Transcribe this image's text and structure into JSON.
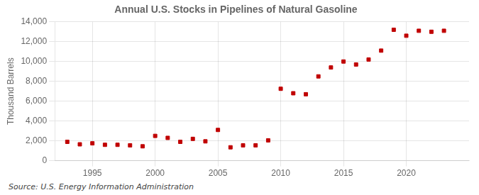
{
  "chart_data": {
    "type": "scatter",
    "title": "Annual U.S. Stocks in Pipelines of Natural Gasoline",
    "y_label": "Thousand Barrels",
    "source": "Source: U.S. Energy Information Administration",
    "color": "#c00000",
    "marker": "square",
    "x": [
      1993,
      1994,
      1995,
      1996,
      1997,
      1998,
      1999,
      2000,
      2001,
      2002,
      2003,
      2004,
      2005,
      2006,
      2007,
      2008,
      2009,
      2010,
      2011,
      2012,
      2013,
      2014,
      2015,
      2016,
      2017,
      2018,
      2019,
      2020,
      2021,
      2022,
      2023
    ],
    "values": [
      1900,
      1650,
      1750,
      1600,
      1600,
      1550,
      1450,
      2500,
      2300,
      1900,
      2200,
      1950,
      3100,
      1350,
      1550,
      1550,
      2050,
      7250,
      6800,
      6700,
      8500,
      9400,
      10000,
      9700,
      10200,
      11100,
      13200,
      12600,
      13100,
      13000,
      13100
    ],
    "xlim": [
      1992,
      2025
    ],
    "xticks": [
      1995,
      2000,
      2005,
      2010,
      2015,
      2020
    ],
    "ylim": [
      0,
      14000
    ],
    "yticks": [
      0,
      {
        "value": 2000,
        "label": "2,000"
      },
      {
        "value": 4000,
        "label": "4,000"
      },
      {
        "value": 6000,
        "label": "6,000"
      },
      {
        "value": 8000,
        "label": "8,000"
      },
      {
        "value": 10000,
        "label": "10,000"
      },
      {
        "value": 12000,
        "label": "12,000"
      },
      {
        "value": 14000,
        "label": "14,000"
      }
    ],
    "grid": true
  }
}
